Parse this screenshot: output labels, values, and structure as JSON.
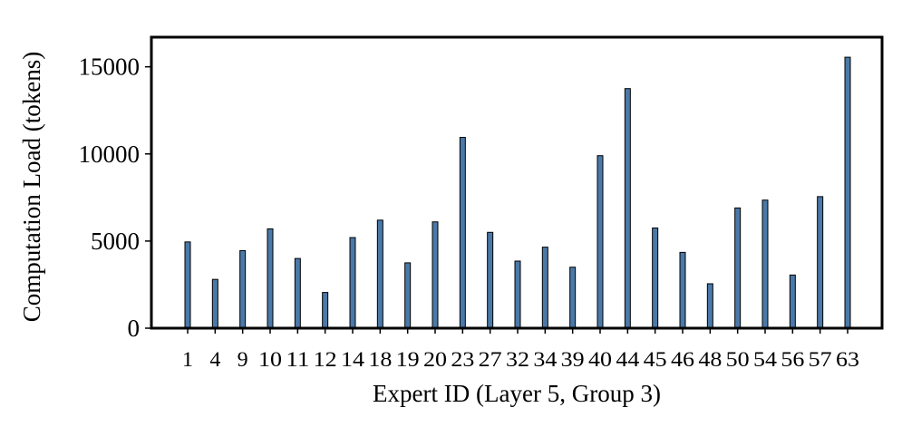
{
  "chart_data": {
    "type": "bar",
    "title": "",
    "xlabel": "Expert ID  (Layer 5, Group 3)",
    "ylabel": "Computation Load (tokens)",
    "ylim": [
      0,
      16700
    ],
    "yticks": [
      0,
      5000,
      10000,
      15000
    ],
    "categories": [
      "1",
      "4",
      "9",
      "10",
      "11",
      "12",
      "14",
      "18",
      "19",
      "20",
      "23",
      "27",
      "32",
      "34",
      "39",
      "40",
      "44",
      "45",
      "46",
      "48",
      "50",
      "54",
      "56",
      "57",
      "63"
    ],
    "values": [
      4950,
      2800,
      4450,
      5700,
      4000,
      2050,
      5200,
      6200,
      3750,
      6100,
      10950,
      5500,
      3850,
      4650,
      3500,
      9900,
      13750,
      5750,
      4350,
      2550,
      6900,
      7350,
      3050,
      7550,
      15550
    ],
    "grid": false,
    "legend": "none",
    "colors": {
      "bar_fill": "#4a79a8",
      "bar_edge": "#000000",
      "frame": "#000000"
    }
  }
}
